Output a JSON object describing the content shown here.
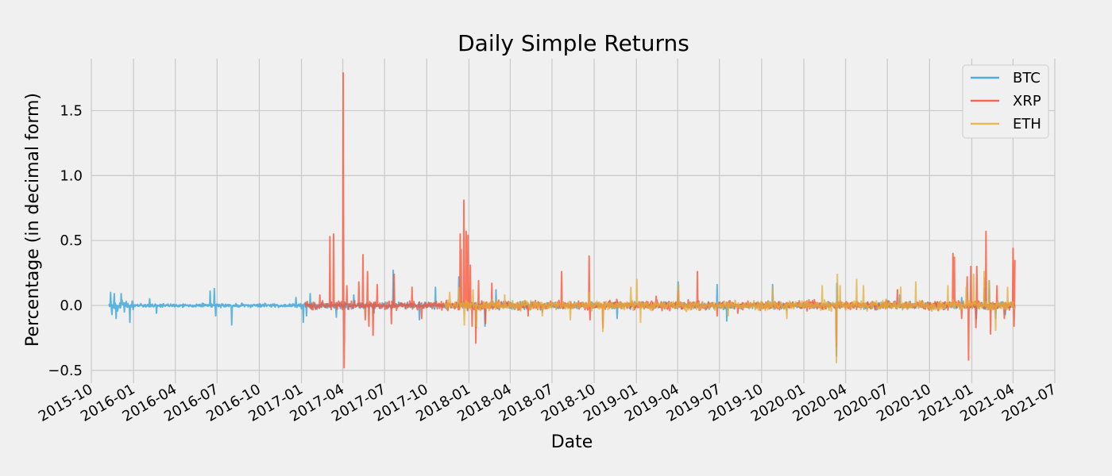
{
  "chart_data": {
    "type": "line",
    "title": "Daily Simple Returns",
    "xlabel": "Date",
    "ylabel": "Percentage (in decimal form)",
    "xlim": [
      "2015-10-01",
      "2021-07-01"
    ],
    "ylim": [
      -0.55,
      1.9
    ],
    "grid": true,
    "legend_position": "top-right",
    "x_ticks": [
      "2015-10",
      "2016-01",
      "2016-04",
      "2016-07",
      "2016-10",
      "2017-01",
      "2017-04",
      "2017-07",
      "2017-10",
      "2018-01",
      "2018-04",
      "2018-07",
      "2018-10",
      "2019-01",
      "2019-04",
      "2019-07",
      "2019-10",
      "2020-01",
      "2020-04",
      "2020-07",
      "2020-10",
      "2021-01",
      "2021-04",
      "2021-07"
    ],
    "y_ticks": [
      -0.5,
      0.0,
      0.5,
      1.0,
      1.5
    ],
    "y_tick_labels": [
      "−0.5",
      "0.0",
      "0.5",
      "1.0",
      "1.5"
    ],
    "series": [
      {
        "name": "BTC",
        "color": "#30a2da",
        "start": "2015-11-08",
        "end": "2021-04-05",
        "points": [
          [
            "2015-11-08",
            0.01
          ],
          [
            "2015-11-12",
            0.1
          ],
          [
            "2015-11-15",
            -0.07
          ],
          [
            "2015-11-20",
            0.09
          ],
          [
            "2015-11-24",
            -0.1
          ],
          [
            "2015-12-05",
            0.09
          ],
          [
            "2015-12-12",
            -0.05
          ],
          [
            "2015-12-24",
            -0.13
          ],
          [
            "2016-02-05",
            0.05
          ],
          [
            "2016-02-20",
            -0.06
          ],
          [
            "2016-06-16",
            0.11
          ],
          [
            "2016-06-25",
            0.13
          ],
          [
            "2016-06-28",
            -0.08
          ],
          [
            "2016-08-02",
            -0.15
          ],
          [
            "2016-12-20",
            0.06
          ],
          [
            "2017-01-05",
            -0.13
          ],
          [
            "2017-01-12",
            -0.08
          ],
          [
            "2017-01-20",
            0.09
          ],
          [
            "2017-03-18",
            -0.09
          ],
          [
            "2017-04-25",
            0.08
          ],
          [
            "2017-06-08",
            -0.06
          ],
          [
            "2017-07-20",
            0.27
          ],
          [
            "2017-09-15",
            -0.11
          ],
          [
            "2017-10-20",
            0.14
          ],
          [
            "2017-12-10",
            0.22
          ],
          [
            "2018-01-17",
            -0.17
          ],
          [
            "2018-02-05",
            -0.16
          ],
          [
            "2018-03-01",
            0.12
          ],
          [
            "2018-06-10",
            -0.05
          ],
          [
            "2018-11-20",
            -0.1
          ],
          [
            "2019-04-02",
            0.18
          ],
          [
            "2019-06-26",
            0.16
          ],
          [
            "2019-07-17",
            -0.12
          ],
          [
            "2019-10-25",
            0.16
          ],
          [
            "2020-03-12",
            -0.39
          ],
          [
            "2020-03-13",
            0.17
          ],
          [
            "2020-07-28",
            0.08
          ],
          [
            "2020-12-10",
            0.06
          ],
          [
            "2021-01-11",
            -0.1
          ],
          [
            "2021-01-29",
            0.14
          ],
          [
            "2021-02-08",
            0.19
          ],
          [
            "2021-02-22",
            -0.1
          ],
          [
            "2021-03-15",
            -0.07
          ]
        ]
      },
      {
        "name": "XRP",
        "color": "#fc4f30",
        "start": "2017-01-09",
        "end": "2021-04-05",
        "points": [
          [
            "2017-02-10",
            0.08
          ],
          [
            "2017-03-04",
            0.53
          ],
          [
            "2017-03-12",
            0.55
          ],
          [
            "2017-03-20",
            -0.03
          ],
          [
            "2017-04-02",
            1.79
          ],
          [
            "2017-04-04",
            -0.48
          ],
          [
            "2017-04-10",
            0.15
          ],
          [
            "2017-05-06",
            0.18
          ],
          [
            "2017-05-15",
            0.39
          ],
          [
            "2017-05-20",
            -0.11
          ],
          [
            "2017-05-25",
            0.26
          ],
          [
            "2017-05-28",
            -0.16
          ],
          [
            "2017-06-06",
            -0.23
          ],
          [
            "2017-06-15",
            0.16
          ],
          [
            "2017-07-16",
            -0.14
          ],
          [
            "2017-07-22",
            0.24
          ],
          [
            "2017-08-30",
            0.14
          ],
          [
            "2017-09-20",
            -0.1
          ],
          [
            "2017-12-13",
            0.55
          ],
          [
            "2017-12-15",
            0.43
          ],
          [
            "2017-12-21",
            0.81
          ],
          [
            "2017-12-26",
            0.57
          ],
          [
            "2017-12-30",
            0.54
          ],
          [
            "2018-01-04",
            0.31
          ],
          [
            "2018-01-08",
            -0.16
          ],
          [
            "2018-01-16",
            -0.29
          ],
          [
            "2018-01-22",
            0.19
          ],
          [
            "2018-02-06",
            -0.14
          ],
          [
            "2018-02-20",
            0.17
          ],
          [
            "2018-05-10",
            -0.08
          ],
          [
            "2018-07-22",
            0.26
          ],
          [
            "2018-09-20",
            0.38
          ],
          [
            "2018-09-22",
            -0.11
          ],
          [
            "2018-10-20",
            -0.17
          ],
          [
            "2019-02-13",
            0.07
          ],
          [
            "2019-04-02",
            0.11
          ],
          [
            "2019-05-14",
            0.26
          ],
          [
            "2019-06-26",
            -0.08
          ],
          [
            "2019-08-10",
            -0.06
          ],
          [
            "2020-03-12",
            -0.32
          ],
          [
            "2020-07-23",
            0.12
          ],
          [
            "2020-10-20",
            -0.04
          ],
          [
            "2020-11-21",
            0.4
          ],
          [
            "2020-11-24",
            0.37
          ],
          [
            "2020-12-10",
            -0.1
          ],
          [
            "2020-12-22",
            0.22
          ],
          [
            "2020-12-25",
            -0.42
          ],
          [
            "2020-12-30",
            0.3
          ],
          [
            "2021-01-10",
            -0.17
          ],
          [
            "2021-01-12",
            0.3
          ],
          [
            "2021-01-30",
            0.21
          ],
          [
            "2021-02-01",
            0.57
          ],
          [
            "2021-02-11",
            -0.22
          ],
          [
            "2021-02-25",
            0.15
          ],
          [
            "2021-03-13",
            -0.1
          ],
          [
            "2021-04-01",
            0.44
          ],
          [
            "2021-04-03",
            -0.16
          ],
          [
            "2021-04-05",
            0.35
          ]
        ]
      },
      {
        "name": "ETH",
        "color": "#e5ae38",
        "start": "2017-11-10",
        "end": "2021-04-05",
        "points": [
          [
            "2017-11-20",
            0.1
          ],
          [
            "2017-12-10",
            0.14
          ],
          [
            "2017-12-22",
            -0.15
          ],
          [
            "2018-01-10",
            0.12
          ],
          [
            "2018-01-17",
            -0.16
          ],
          [
            "2018-03-20",
            0.08
          ],
          [
            "2018-06-10",
            -0.08
          ],
          [
            "2018-08-10",
            -0.11
          ],
          [
            "2018-09-20",
            0.1
          ],
          [
            "2018-10-20",
            -0.2
          ],
          [
            "2018-12-20",
            0.14
          ],
          [
            "2019-01-02",
            0.2
          ],
          [
            "2019-01-10",
            -0.13
          ],
          [
            "2019-04-03",
            0.16
          ],
          [
            "2019-07-20",
            -0.08
          ],
          [
            "2019-10-25",
            0.14
          ],
          [
            "2019-11-25",
            -0.1
          ],
          [
            "2020-02-10",
            0.15
          ],
          [
            "2020-03-12",
            -0.44
          ],
          [
            "2020-03-14",
            0.24
          ],
          [
            "2020-03-20",
            0.15
          ],
          [
            "2020-04-25",
            0.2
          ],
          [
            "2020-05-10",
            0.15
          ],
          [
            "2020-07-30",
            0.14
          ],
          [
            "2020-09-01",
            0.18
          ],
          [
            "2020-11-10",
            0.15
          ],
          [
            "2020-12-20",
            0.14
          ],
          [
            "2021-01-05",
            0.24
          ],
          [
            "2021-01-28",
            0.26
          ],
          [
            "2021-02-08",
            0.19
          ],
          [
            "2021-02-22",
            -0.19
          ],
          [
            "2021-03-20",
            0.14
          ]
        ]
      }
    ]
  }
}
